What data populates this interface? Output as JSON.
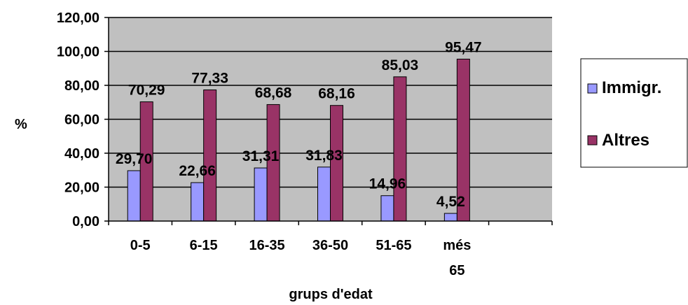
{
  "chart_data": {
    "type": "bar",
    "categories": [
      [
        "0-5"
      ],
      [
        "6-15"
      ],
      [
        "16-35"
      ],
      [
        "36-50"
      ],
      [
        "51-65"
      ],
      [
        "més",
        "65"
      ],
      [
        ""
      ]
    ],
    "series": [
      {
        "name": "Immigr.",
        "values": [
          29.7,
          22.66,
          31.31,
          31.83,
          14.96,
          4.52,
          null
        ],
        "labels": [
          "29,70",
          "22,66",
          "31,31",
          "31,83",
          "14,96",
          "4,52",
          ""
        ]
      },
      {
        "name": "Altres",
        "values": [
          70.29,
          77.33,
          68.68,
          68.16,
          85.03,
          95.47,
          null
        ],
        "labels": [
          "70,29",
          "77,33",
          "68,68",
          "68,16",
          "85,03",
          "95,47",
          ""
        ]
      }
    ],
    "colors": {
      "Immigr.": "#9999ff",
      "Altres": "#993366",
      "plot_bg": "#c0c0c0"
    },
    "title": "",
    "xlabel": "grups d'edat",
    "ylabel": "%",
    "ylim": [
      0,
      120
    ],
    "yticks": [
      "0,00",
      "20,00",
      "40,00",
      "60,00",
      "80,00",
      "100,00",
      "120,00"
    ],
    "grid": true,
    "legend_position": "right"
  }
}
